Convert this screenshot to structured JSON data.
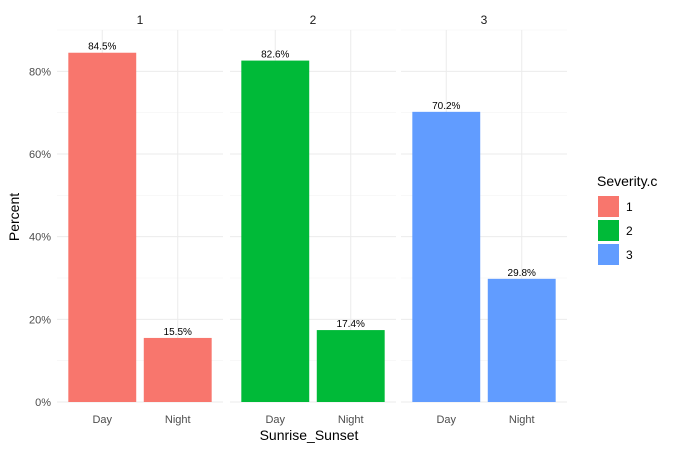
{
  "chart_data": {
    "type": "bar",
    "xlabel": "Sunrise_Sunset",
    "ylabel": "Percent",
    "ylim": [
      0,
      0.9
    ],
    "yticks": [
      0,
      0.2,
      0.4,
      0.6,
      0.8
    ],
    "ytick_labels": [
      "0%",
      "20%",
      "40%",
      "60%",
      "80%"
    ],
    "categories": [
      "Day",
      "Night"
    ],
    "grid": true,
    "legend": {
      "title": "Severity.c",
      "position": "right",
      "entries": [
        {
          "label": "1",
          "color": "#F8766D"
        },
        {
          "label": "2",
          "color": "#00BA38"
        },
        {
          "label": "3",
          "color": "#619CFF"
        }
      ]
    },
    "facets": [
      {
        "label": "1",
        "color": "#F8766D",
        "values": [
          0.845,
          0.155
        ],
        "data_labels": [
          "84.5%",
          "15.5%"
        ]
      },
      {
        "label": "2",
        "color": "#00BA38",
        "values": [
          0.826,
          0.174
        ],
        "data_labels": [
          "82.6%",
          "17.4%"
        ]
      },
      {
        "label": "3",
        "color": "#619CFF",
        "values": [
          0.702,
          0.298
        ],
        "data_labels": [
          "70.2%",
          "29.8%"
        ]
      }
    ]
  }
}
